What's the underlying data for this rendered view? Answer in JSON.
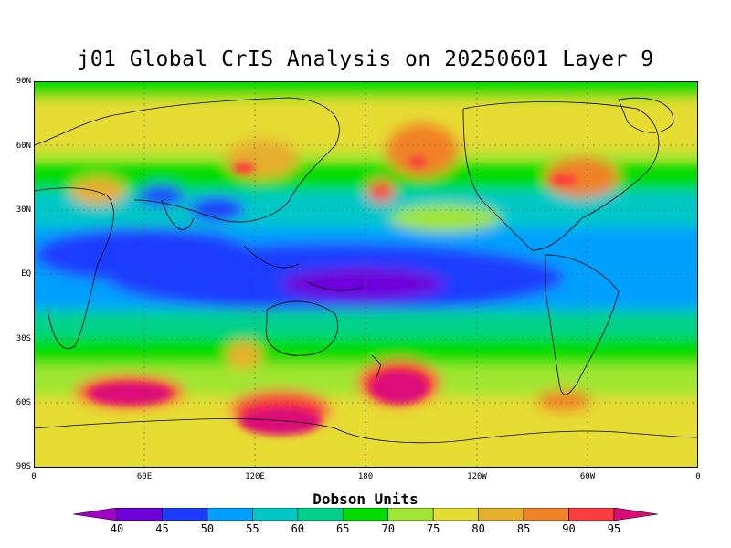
{
  "title": "j01 Global CrIS Analysis on 20250601 Layer 9",
  "lat_labels": [
    "90N",
    "60N",
    "30N",
    "EQ",
    "30S",
    "60S",
    "90S"
  ],
  "lon_labels": [
    "0",
    "60E",
    "120E",
    "180",
    "120W",
    "60W",
    "0"
  ],
  "colorbar": {
    "label": "Dobson Units",
    "ticks": [
      "40",
      "45",
      "50",
      "55",
      "60",
      "65",
      "70",
      "75",
      "80",
      "85",
      "90",
      "95"
    ],
    "colors": [
      "#a000c8",
      "#6e00dc",
      "#1e3cff",
      "#00a0ff",
      "#00c8c8",
      "#00d28c",
      "#00dc00",
      "#a0e632",
      "#e6dc32",
      "#e6af2d",
      "#f08228",
      "#fa3c3c",
      "#dc0a78"
    ]
  }
}
